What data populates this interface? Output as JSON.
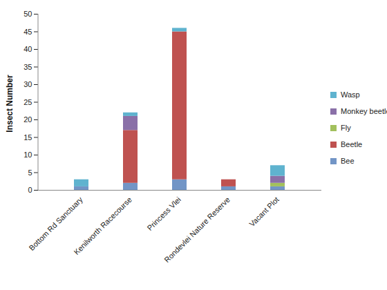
{
  "chart_data": {
    "type": "bar",
    "stacked": true,
    "ylabel": "Insect Number",
    "categories": [
      "Bottom Rd Sanctuary",
      "Kenilworth Racecourse",
      "Princess Vlei",
      "Rondevlei Nature Reserve",
      "Vacant Plot"
    ],
    "series": [
      {
        "name": "Bee",
        "color": "#7295c6",
        "values": [
          1,
          2,
          3,
          1,
          1
        ]
      },
      {
        "name": "Beetle",
        "color": "#bf5250",
        "values": [
          0,
          15,
          42,
          2,
          0
        ]
      },
      {
        "name": "Fly",
        "color": "#a2c05d",
        "values": [
          0,
          0,
          0,
          0,
          1
        ]
      },
      {
        "name": "Monkey beetle",
        "color": "#8a70a8",
        "values": [
          0,
          4,
          0,
          0,
          2
        ]
      },
      {
        "name": "Wasp",
        "color": "#5fb3cf",
        "values": [
          2,
          1,
          1,
          0,
          3
        ]
      }
    ],
    "ylim": [
      0,
      50
    ],
    "yticks": [
      0,
      5,
      10,
      15,
      20,
      25,
      30,
      35,
      40,
      45,
      50
    ],
    "grid": false,
    "legend": "right"
  }
}
